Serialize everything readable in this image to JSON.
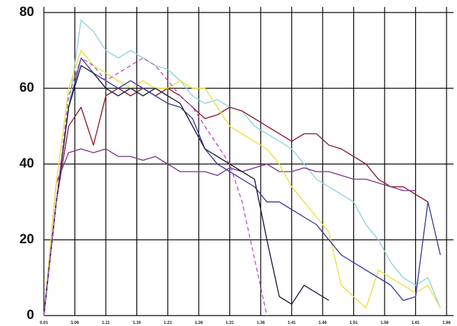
{
  "chart_data": {
    "type": "line",
    "x": [
      0,
      2,
      4,
      6,
      8,
      10,
      12,
      14,
      16,
      18,
      20,
      22,
      24,
      26,
      28,
      30,
      32,
      34,
      36,
      38,
      40,
      42,
      44,
      46,
      48,
      50,
      52,
      54,
      56,
      58,
      60,
      62,
      64
    ],
    "xlim": [
      0,
      65
    ],
    "xticks": [
      {
        "value": 0,
        "label": "0.01"
      },
      {
        "value": 5,
        "label": "1.06"
      },
      {
        "value": 10,
        "label": "1.11"
      },
      {
        "value": 15,
        "label": "1.16"
      },
      {
        "value": 20,
        "label": "1.21"
      },
      {
        "value": 25,
        "label": "1.26"
      },
      {
        "value": 30,
        "label": "1.31"
      },
      {
        "value": 35,
        "label": "1.36"
      },
      {
        "value": 40,
        "label": "1.41"
      },
      {
        "value": 45,
        "label": "1.46"
      },
      {
        "value": 50,
        "label": "1.51"
      },
      {
        "value": 55,
        "label": "1.56"
      },
      {
        "value": 60,
        "label": "1.61"
      },
      {
        "value": 65,
        "label": "1.66"
      }
    ],
    "ylim": [
      0,
      80
    ],
    "yticks": [
      0,
      20,
      40,
      60,
      80
    ],
    "grid": true,
    "series": [
      {
        "color": "#8fd3dc",
        "dashed": false,
        "values": [
          0,
          30,
          55,
          78,
          75,
          70,
          68,
          70,
          68,
          66,
          65,
          62,
          58,
          56,
          57,
          55,
          54,
          50,
          48,
          46,
          44,
          40,
          36,
          34,
          32,
          30,
          24,
          20,
          14,
          10,
          8,
          10,
          2
        ]
      },
      {
        "color": "#8b1a2a",
        "dashed": false,
        "values": [
          0,
          30,
          50,
          55,
          45,
          58,
          60,
          58,
          60,
          58,
          60,
          58,
          55,
          52,
          53,
          55,
          54,
          52,
          50,
          48,
          46,
          48,
          48,
          45,
          44,
          42,
          40,
          36,
          34,
          34,
          32,
          30,
          null
        ]
      },
      {
        "color": "#7a3a8c",
        "dashed": false,
        "values": [
          0,
          35,
          43,
          44,
          43,
          44,
          42,
          42,
          41,
          42,
          40,
          38,
          38,
          38,
          37,
          39,
          38,
          39,
          40,
          38,
          38,
          39,
          38,
          38,
          37,
          36,
          36,
          35,
          34,
          33,
          33,
          null,
          null
        ]
      },
      {
        "color": "#e8e040",
        "dashed": false,
        "values": [
          0,
          35,
          60,
          70,
          66,
          64,
          62,
          60,
          62,
          60,
          60,
          62,
          60,
          60,
          55,
          50,
          48,
          46,
          44,
          40,
          34,
          30,
          26,
          22,
          8,
          5,
          2,
          12,
          10,
          8,
          6,
          8,
          2
        ]
      },
      {
        "color": "#3a3a9a",
        "dashed": false,
        "values": [
          0,
          30,
          55,
          68,
          64,
          62,
          60,
          62,
          60,
          58,
          56,
          55,
          52,
          44,
          40,
          38,
          36,
          34,
          30,
          30,
          28,
          26,
          24,
          20,
          16,
          14,
          12,
          10,
          8,
          4,
          5,
          30,
          16
        ]
      },
      {
        "color": "#1a1a40",
        "dashed": false,
        "values": [
          0,
          30,
          55,
          66,
          64,
          60,
          58,
          60,
          58,
          60,
          58,
          56,
          50,
          44,
          42,
          40,
          38,
          36,
          20,
          5,
          3,
          8,
          6,
          4,
          null,
          null,
          null,
          null,
          null,
          null,
          null,
          null,
          null
        ]
      },
      {
        "color": "#c050c0",
        "dashed": true,
        "values": [
          0,
          30,
          58,
          68,
          66,
          62,
          64,
          66,
          68,
          66,
          62,
          58,
          55,
          50,
          45,
          40,
          30,
          15,
          0,
          null,
          null,
          null,
          null,
          null,
          null,
          null,
          null,
          null,
          null,
          null,
          null,
          null,
          null
        ]
      }
    ]
  }
}
